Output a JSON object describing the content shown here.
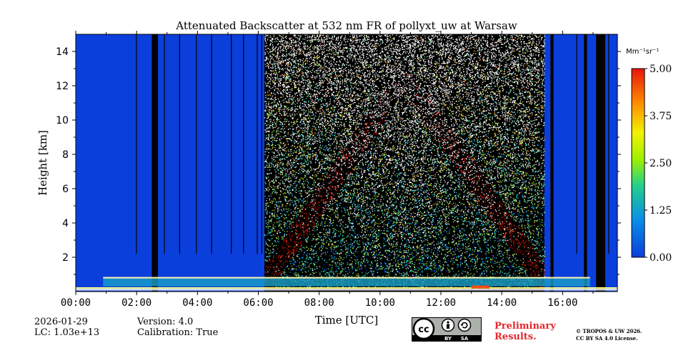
{
  "chart_data": {
    "type": "heatmap",
    "title": "Attenuated Backscatter at 532 nm FR of pollyxt_uw at Warsaw",
    "xlabel": "Time [UTC]",
    "ylabel": "Height [km]",
    "xlim": [
      0,
      17.8
    ],
    "ylim": [
      0,
      15
    ],
    "x_ticks": [
      0,
      2,
      4,
      6,
      8,
      10,
      12,
      14,
      16
    ],
    "x_tick_labels": [
      "00:00",
      "02:00",
      "04:00",
      "06:00",
      "08:00",
      "10:00",
      "12:00",
      "14:00",
      "16:00"
    ],
    "y_ticks": [
      2,
      4,
      6,
      8,
      10,
      12,
      14
    ],
    "y_tick_labels": [
      "2",
      "4",
      "6",
      "8",
      "10",
      "12",
      "14"
    ],
    "colorbar": {
      "unit_label": "Mm⁻¹sr⁻¹",
      "range": [
        0.0,
        5.0
      ],
      "ticks": [
        0.0,
        1.25,
        2.5,
        3.75,
        5.0
      ],
      "tick_labels": [
        "0.00",
        "1.25",
        "2.50",
        "3.75",
        "5.00"
      ],
      "colormap": "jet"
    },
    "background_color": "#0b3fdc",
    "missing_data_color": "#000000",
    "noise_region_hours": [
      6.2,
      15.4
    ],
    "boundary_layer_top_km": 0.85,
    "no_data_columns_hours": [
      {
        "start": 2.5,
        "end": 2.7
      },
      {
        "start": 17.1,
        "end": 17.4
      },
      {
        "start": 16.7,
        "end": 16.8
      },
      {
        "start": 15.6,
        "end": 15.7
      }
    ],
    "thin_gap_hours": [
      1.98,
      2.9,
      3.4,
      3.95,
      4.45,
      5.1,
      5.5,
      5.95,
      6.1,
      15.25,
      16.45,
      17.5
    ]
  },
  "footer": {
    "date": "2026-01-29",
    "lc": "LC: 1.03e+13",
    "version": "Version: 4.0",
    "calibration": "Calibration: True",
    "preliminary_line1": "Preliminary",
    "preliminary_line2": "Results.",
    "copyright_line1": "© TROPOS & UW 2026.",
    "copyright_line2": "CC BY SA 4.0 License.",
    "badge_by": "BY",
    "badge_sa": "SA"
  }
}
